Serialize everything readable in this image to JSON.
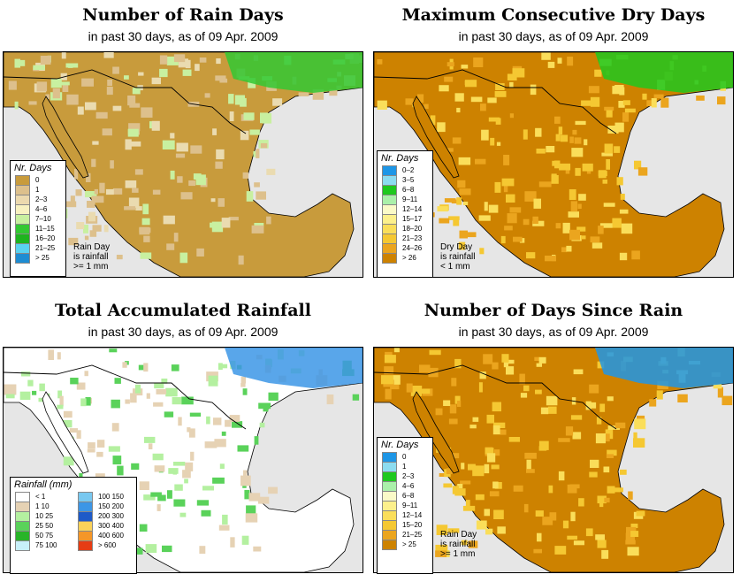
{
  "panels": [
    {
      "title": "Number of Rain Days",
      "subtitle": "in past 30 days, as of  09 Apr. 2009",
      "legend_title": "Nr. Days",
      "legend": [
        {
          "label": "0",
          "color": "#c89b3c"
        },
        {
          "label": "1",
          "color": "#ddc08c"
        },
        {
          "label": "2–3",
          "color": "#ecd9ae"
        },
        {
          "label": "4–6",
          "color": "#f8f1c0"
        },
        {
          "label": "7–10",
          "color": "#c8f0a0"
        },
        {
          "label": "11–15",
          "color": "#32c832"
        },
        {
          "label": "16–20",
          "color": "#1eb41e"
        },
        {
          "label": "21–25",
          "color": "#5ad2f0"
        },
        {
          "label": "> 25",
          "color": "#1e8cd2"
        }
      ],
      "note": [
        "Rain Day",
        "is rainfall",
        ">= 1 mm"
      ]
    },
    {
      "title": "Maximum Consecutive Dry Days",
      "subtitle": "in past 30 days, as of  09 Apr. 2009",
      "legend_title": "Nr. Days",
      "legend": [
        {
          "label": "0–2",
          "color": "#1e96e6"
        },
        {
          "label": "3–5",
          "color": "#8cdcf0"
        },
        {
          "label": "6–8",
          "color": "#1ec81e"
        },
        {
          "label": "9–11",
          "color": "#aaf0aa"
        },
        {
          "label": "12–14",
          "color": "#fafac8"
        },
        {
          "label": "15–17",
          "color": "#fcf08c"
        },
        {
          "label": "18–20",
          "color": "#fade5a"
        },
        {
          "label": "21–23",
          "color": "#f5c832"
        },
        {
          "label": "24–26",
          "color": "#eba51e"
        },
        {
          "label": "> 26",
          "color": "#cd8200"
        }
      ],
      "note": [
        "Dry Day",
        "is rainfall",
        "< 1 mm"
      ]
    },
    {
      "title": "Total Accumulated Rainfall",
      "subtitle": "in past 30 days, as of  09 Apr. 2009",
      "legend_title": "Rainfall (mm)",
      "legend": [
        {
          "label": "<  1",
          "color": "#ffffff"
        },
        {
          "label": "1    10",
          "color": "#e6d2b4"
        },
        {
          "label": "10    25",
          "color": "#b4f0a0"
        },
        {
          "label": "25    50",
          "color": "#5ad25a"
        },
        {
          "label": "50    75",
          "color": "#28b428"
        },
        {
          "label": "75  100",
          "color": "#c8f0fa"
        },
        {
          "label": "100  150",
          "color": "#78c8f0"
        },
        {
          "label": "150  200",
          "color": "#3c96e6"
        },
        {
          "label": "200  300",
          "color": "#1e5ac8"
        },
        {
          "label": "300  400",
          "color": "#fad25a"
        },
        {
          "label": "400  600",
          "color": "#f59628"
        },
        {
          "label": "> 600",
          "color": "#e63c14"
        }
      ]
    },
    {
      "title": "Number of Days Since Rain",
      "subtitle": "in past 30 days, as of  09 Apr. 2009",
      "legend_title": "Nr. Days",
      "legend": [
        {
          "label": "0",
          "color": "#1e96e6"
        },
        {
          "label": "1",
          "color": "#8cdcf0"
        },
        {
          "label": "2–3",
          "color": "#1ec81e"
        },
        {
          "label": "4–6",
          "color": "#aaf0aa"
        },
        {
          "label": "6–8",
          "color": "#fafac8"
        },
        {
          "label": "9–11",
          "color": "#fcf08c"
        },
        {
          "label": "12–14",
          "color": "#fade5a"
        },
        {
          "label": "15–20",
          "color": "#f5c832"
        },
        {
          "label": "21–25",
          "color": "#eba51e"
        },
        {
          "label": "> 25",
          "color": "#cd8200"
        }
      ],
      "note": [
        "Rain Day",
        "is rainfall",
        ">= 1 mm"
      ]
    }
  ],
  "colors": {
    "water": "#e6e6e6",
    "border": "#000000"
  }
}
